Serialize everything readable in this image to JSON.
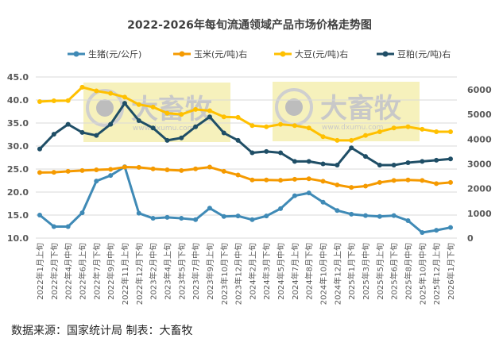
{
  "chart_data": {
    "type": "line",
    "title": "2022-2026年每旬流通领域产品市场价格走势图",
    "categories": [
      "2022年1月上旬",
      "2022年2月下旬",
      "2022年4月中旬",
      "2022年6月上旬",
      "2022年7月下旬",
      "2022年9月中旬",
      "2022年11月上旬",
      "2022年12月下旬",
      "2023年2月中旬",
      "2023年4月上旬",
      "2023年5月下旬",
      "2023年7月中旬",
      "2023年9月上旬",
      "2023年10月下旬",
      "2023年12月中旬",
      "2024年2月上旬",
      "2024年3月下旬",
      "2024年5月中旬",
      "2024年7月上旬",
      "2024年8月下旬",
      "2024年10月中旬",
      "2024年12月上旬",
      "2025年1月下旬",
      "2025年3月中旬",
      "2025年5月上旬",
      "2025年6月下旬",
      "2025年8月中旬",
      "2025年10月中旬",
      "2025年12月上旬",
      "2026年1月下旬"
    ],
    "left_axis": {
      "ylim": [
        10,
        45
      ],
      "ticks": [
        "10.0",
        "15.0",
        "20.0",
        "25.0",
        "30.0",
        "35.0",
        "40.0",
        "45.0"
      ]
    },
    "right_axis": {
      "ylim": [
        0,
        6500
      ],
      "ticks": [
        "0",
        "1000",
        "2000",
        "3000",
        "4000",
        "5000",
        "6000"
      ]
    },
    "grid": true,
    "legend_position": "top",
    "series": [
      {
        "name": "生猪(元/公斤)",
        "axis": "left",
        "color": "#3f8ab6",
        "values": [
          15.0,
          12.5,
          12.5,
          15.5,
          22.4,
          23.6,
          25.5,
          15.4,
          14.3,
          14.5,
          14.3,
          14.0,
          16.5,
          14.7,
          14.8,
          14.0,
          14.8,
          16.4,
          19.2,
          19.8,
          17.8,
          16.0,
          15.2,
          14.9,
          14.7,
          14.9,
          13.8,
          11.2,
          11.7,
          12.3
        ]
      },
      {
        "name": "玉米(元/吨)右",
        "axis": "right",
        "color": "#f59a00",
        "values": [
          2650,
          2660,
          2700,
          2730,
          2760,
          2780,
          2870,
          2860,
          2800,
          2760,
          2730,
          2800,
          2870,
          2700,
          2550,
          2350,
          2350,
          2340,
          2380,
          2400,
          2300,
          2150,
          2050,
          2100,
          2250,
          2330,
          2350,
          2330,
          2200,
          2250
        ]
      },
      {
        "name": "大豆(元/吨)右",
        "axis": "right",
        "color": "#ffc000",
        "values": [
          5520,
          5550,
          5560,
          6100,
          5950,
          5850,
          5700,
          5400,
          5300,
          5050,
          5000,
          5200,
          5150,
          4900,
          4880,
          4550,
          4500,
          4600,
          4550,
          4450,
          4100,
          3950,
          3950,
          4150,
          4300,
          4450,
          4500,
          4400,
          4300,
          4300
        ]
      },
      {
        "name": "豆粕(元/吨)右",
        "axis": "right",
        "color": "#1f4e66",
        "values": [
          3600,
          4200,
          4600,
          4270,
          4150,
          4600,
          5450,
          4750,
          4450,
          3950,
          4050,
          4500,
          4900,
          4250,
          3950,
          3450,
          3500,
          3450,
          3100,
          3100,
          3000,
          2950,
          3650,
          3300,
          2950,
          2950,
          3050,
          3100,
          3150,
          3200
        ]
      }
    ]
  },
  "footer": "数据来源：国家统计局  制表：大畜牧",
  "watermark": {
    "text": "大畜牧",
    "url_text": "www.dxumu.com",
    "color": "#f5eeb0"
  }
}
